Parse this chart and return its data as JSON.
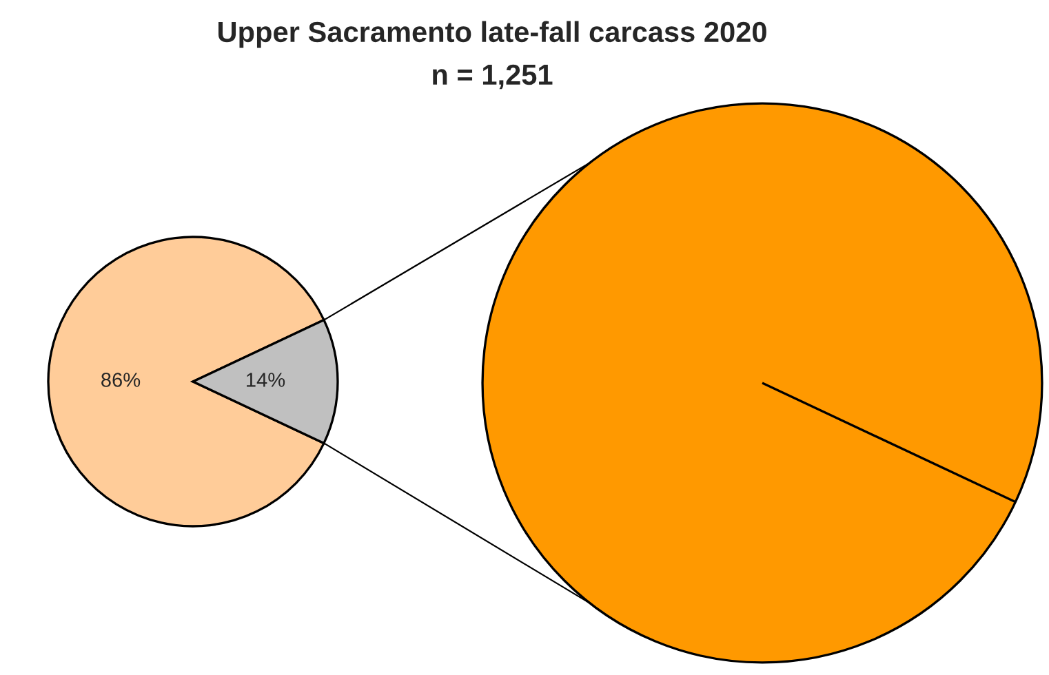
{
  "chart_data": [
    {
      "type": "pie",
      "categories": [
        null,
        null
      ],
      "values": [
        86,
        14
      ],
      "colors": [
        "#ffcc99",
        "#c0c0c0"
      ],
      "value_labels": [
        "86%",
        "14%"
      ]
    },
    {
      "type": "pie",
      "title": "Upper Sacramento late-fall carcass 2020",
      "subtitle": "n = 1,251",
      "categories": [
        null
      ],
      "values": [
        100
      ],
      "colors": [
        "#ff9900"
      ]
    }
  ]
}
